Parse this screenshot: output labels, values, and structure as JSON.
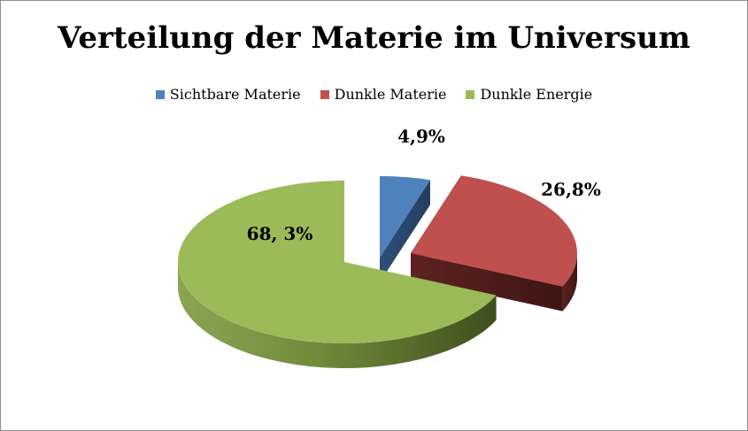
{
  "chart_data": {
    "type": "pie",
    "title": "Verteilung der Materie im Universum",
    "legend_position": "top",
    "slices": [
      {
        "name": "Sichtbare Materie",
        "value": 4.9,
        "label": "4,9%",
        "color": "#4f81bd"
      },
      {
        "name": "Dunkle Materie",
        "value": 26.8,
        "label": "26,8%",
        "color": "#c0504d"
      },
      {
        "name": "Dunkle Energie",
        "value": 68.3,
        "label": "68, 3%",
        "color": "#9bbb59"
      }
    ]
  }
}
